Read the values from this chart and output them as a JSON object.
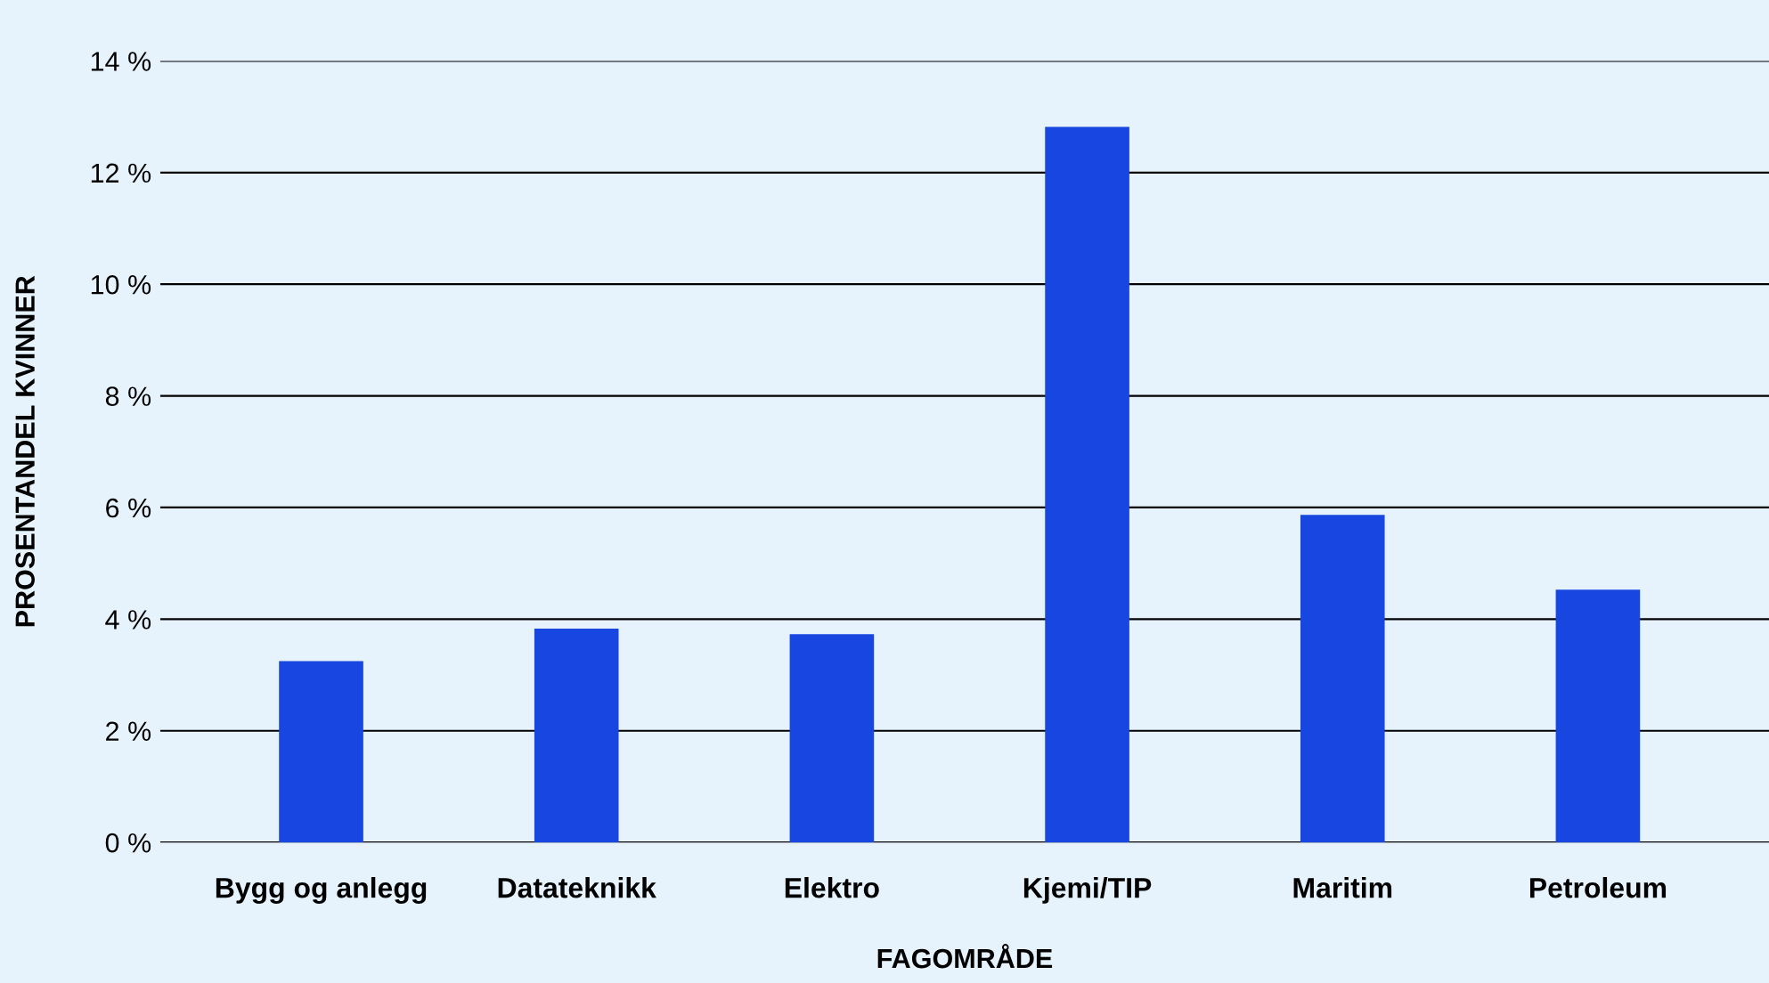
{
  "chart_data": {
    "type": "bar",
    "xlabel": "FAGOMRÅDE",
    "ylabel": "PROSENTANDEL KVINNER",
    "categories": [
      "Bygg og anlegg",
      "Datateknikk",
      "Elektro",
      "Kjemi/TIP",
      "Maritim",
      "Petroleum"
    ],
    "values": [
      3.25,
      3.83,
      3.73,
      12.82,
      5.87,
      4.53
    ],
    "color": "#1747e0",
    "ylim": [
      0,
      14
    ],
    "yticks": [
      {
        "value": 0,
        "label": "0 %"
      },
      {
        "value": 2,
        "label": "2 %"
      },
      {
        "value": 4,
        "label": "4 %"
      },
      {
        "value": 6,
        "label": "6 %"
      },
      {
        "value": 8,
        "label": "8 %"
      },
      {
        "value": 10,
        "label": "10 %"
      },
      {
        "value": 12,
        "label": "12 %"
      },
      {
        "value": 14,
        "label": "14 %"
      }
    ],
    "grid": "y",
    "legend": false
  }
}
